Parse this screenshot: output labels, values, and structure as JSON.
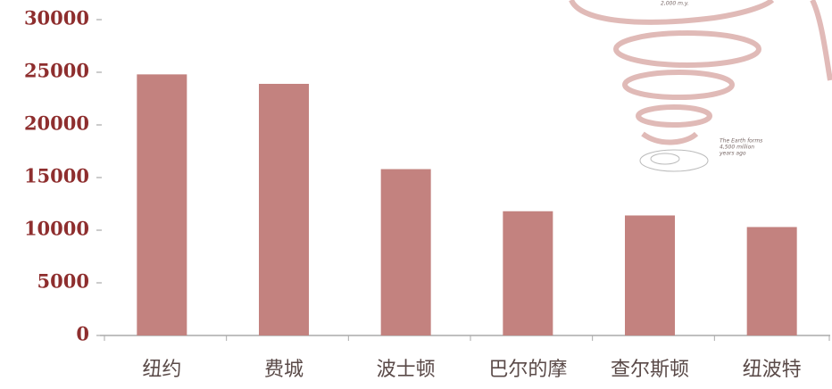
{
  "chart_data": {
    "type": "bar",
    "categories": [
      "纽约",
      "费城",
      "波士顿",
      "巴尔的摩",
      "查尔斯顿",
      "纽波特"
    ],
    "values": [
      24800,
      23900,
      15800,
      11800,
      11400,
      10300
    ],
    "color": "#c3827f",
    "ylim": [
      0,
      30000
    ],
    "yticks": [
      0,
      5000,
      10000,
      15000,
      20000,
      25000,
      30000
    ],
    "annotations": [
      "2,000 m.y.",
      "The Earth forms",
      "4,500 million",
      "years ago"
    ]
  }
}
